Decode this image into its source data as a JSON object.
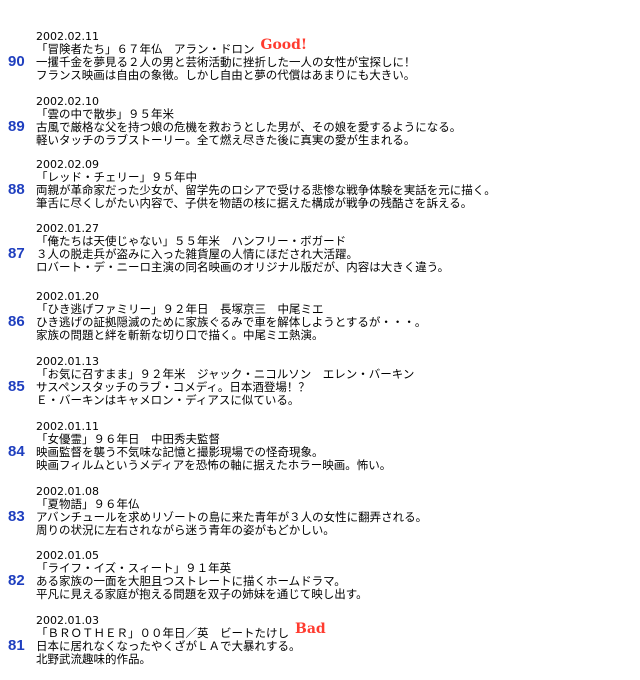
{
  "entries": [
    {
      "number": "90",
      "date": "2002.02.11",
      "line1": "「冒険者たち」６７年仏　アラン・ドロン",
      "badge": "Good!",
      "line2": "一攫千金を夢見る２人の男と芸術活動に挫折した一人の女性が宝探しに！",
      "line3": "フランス映画は自由の象徴。しかし自由と夢の代償はあまりにも大きい。"
    },
    {
      "number": "89",
      "date": "2002.02.10",
      "line1": "「雲の中で散歩」９５年米",
      "badge": "",
      "line2": "古風で厳格な父を持つ娘の危機を救おうとした男が、その娘を愛するようになる。",
      "line3": "軽いタッチのラブストーリー。全て燃え尽きた後に真実の愛が生まれる。"
    },
    {
      "number": "88",
      "date": "2002.02.09",
      "line1": "「レッド・チェリー」９５年中",
      "badge": "",
      "line2": "両親が革命家だった少女が、留学先のロシアで受ける悲惨な戦争体験を実話を元に描く。",
      "line3": "筆舌に尽くしがたい内容で、子供を物語の核に据えた構成が戦争の残酷さを訴える。"
    },
    {
      "number": "87",
      "date": "2002.01.27",
      "line1": "「俺たちは天使じゃない」５５年米　ハンフリー・ボガード",
      "badge": "",
      "line2": "３人の脱走兵が盗みに入った雑貨屋の人情にほだされ大活躍。",
      "line3": "ロバート・デ・ニーロ主演の同名映画のオリジナル版だが、内容は大きく違う。"
    },
    {
      "number": "86",
      "date": "2002.01.20",
      "line1": "「ひき逃げファミリー」９２年日　長塚京三　中尾ミエ",
      "badge": "",
      "line2": "ひき逃げの証拠隠滅のために家族ぐるみで車を解体しようとするが・・・。",
      "line3": "家族の問題と絆を斬新な切り口で描く。中尾ミエ熱演。"
    },
    {
      "number": "85",
      "date": "2002.01.13",
      "line1": "「お気に召すまま」９２年米　ジャック・ニコルソン　エレン・バーキン",
      "badge": "",
      "line2": "サスペンスタッチのラブ・コメディ。日本酒登場！？",
      "line3": "Ｅ・バーキンはキャメロン・ディアスに似ている。"
    },
    {
      "number": "84",
      "date": "2002.01.11",
      "line1": "「女優霊」９６年日　中田秀夫監督",
      "badge": "",
      "line2": "映画監督を襲う不気味な記憶と撮影現場での怪奇現象。",
      "line3": "映画フィルムというメディアを恐怖の軸に据えたホラー映画。怖い。"
    },
    {
      "number": "83",
      "date": "2002.01.08",
      "line1": "「夏物語」９６年仏",
      "badge": "",
      "line2": "アバンチュールを求めリゾートの島に来た青年が３人の女性に翻弄される。",
      "line3": "周りの状況に左右されながら迷う青年の姿がもどかしい。"
    },
    {
      "number": "82",
      "date": "2002.01.05",
      "line1": "「ライフ・イズ・スィート」９１年英",
      "badge": "",
      "line2": "ある家族の一面を大胆且つストレートに描くホームドラマ。",
      "line3": "平凡に見える家庭が抱える問題を双子の姉妹を通じて映し出す。"
    },
    {
      "number": "81",
      "date": "2002.01.03",
      "line1": "「ＢＲＯＴＨＥＲ」００年日／英　ビートたけし",
      "badge": "Bad",
      "line2": "日本に居れなくなったやくざがＬＡで大暴れする。",
      "line3": "北野武流趣味的作品。"
    }
  ]
}
